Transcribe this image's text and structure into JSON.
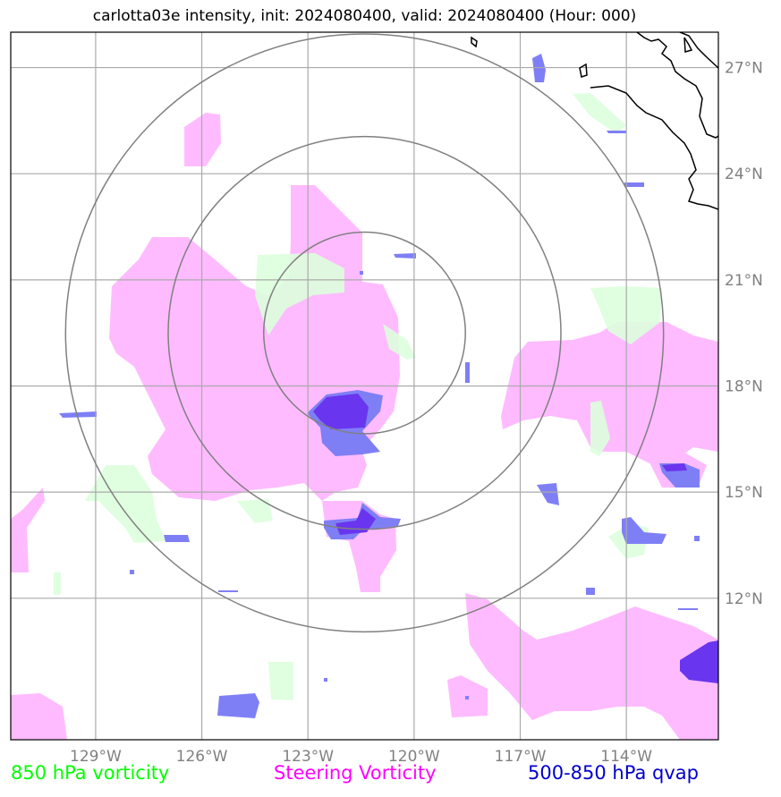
{
  "title": "carlotta03e intensity, init: 2024080400, valid: 2024080400 (Hour: 000)",
  "map": {
    "lon_range": [
      -131.4,
      -111.4
    ],
    "lat_range": [
      8.0,
      28.0
    ],
    "lon_ticks": [
      {
        "value": -129,
        "label": "129°W"
      },
      {
        "value": -126,
        "label": "126°W"
      },
      {
        "value": -123,
        "label": "123°W"
      },
      {
        "value": -120,
        "label": "120°W"
      },
      {
        "value": -117,
        "label": "117°W"
      },
      {
        "value": -114,
        "label": "114°W"
      }
    ],
    "lat_ticks": [
      {
        "value": 27,
        "label": "27°N"
      },
      {
        "value": 24,
        "label": "24°N"
      },
      {
        "value": 21,
        "label": "21°N"
      },
      {
        "value": 18,
        "label": "18°N"
      },
      {
        "value": 15,
        "label": "15°N"
      },
      {
        "value": 12,
        "label": "12°N"
      }
    ],
    "grid": true,
    "storm_center": {
      "lon": -121.4,
      "lat": 19.5
    },
    "range_rings_deg": [
      2.85,
      5.55,
      8.45
    ]
  },
  "legend": {
    "vort850": {
      "label": "850 hPa vorticity",
      "color": "#00ff00"
    },
    "steering": {
      "label": "Steering Vorticity",
      "color": "#ff00ff"
    },
    "qvap": {
      "label": "500-850 hPa qvap",
      "color": "#0000cc"
    }
  },
  "colors": {
    "steering_fill": "#ffbbff",
    "vort850_fill": "#ddffdd",
    "qvap_fill": "#7f7ff5",
    "qvap_dark": "#6a35ee",
    "grid": "#aaaaaa",
    "rings": "#808080",
    "coast": "#000000"
  }
}
